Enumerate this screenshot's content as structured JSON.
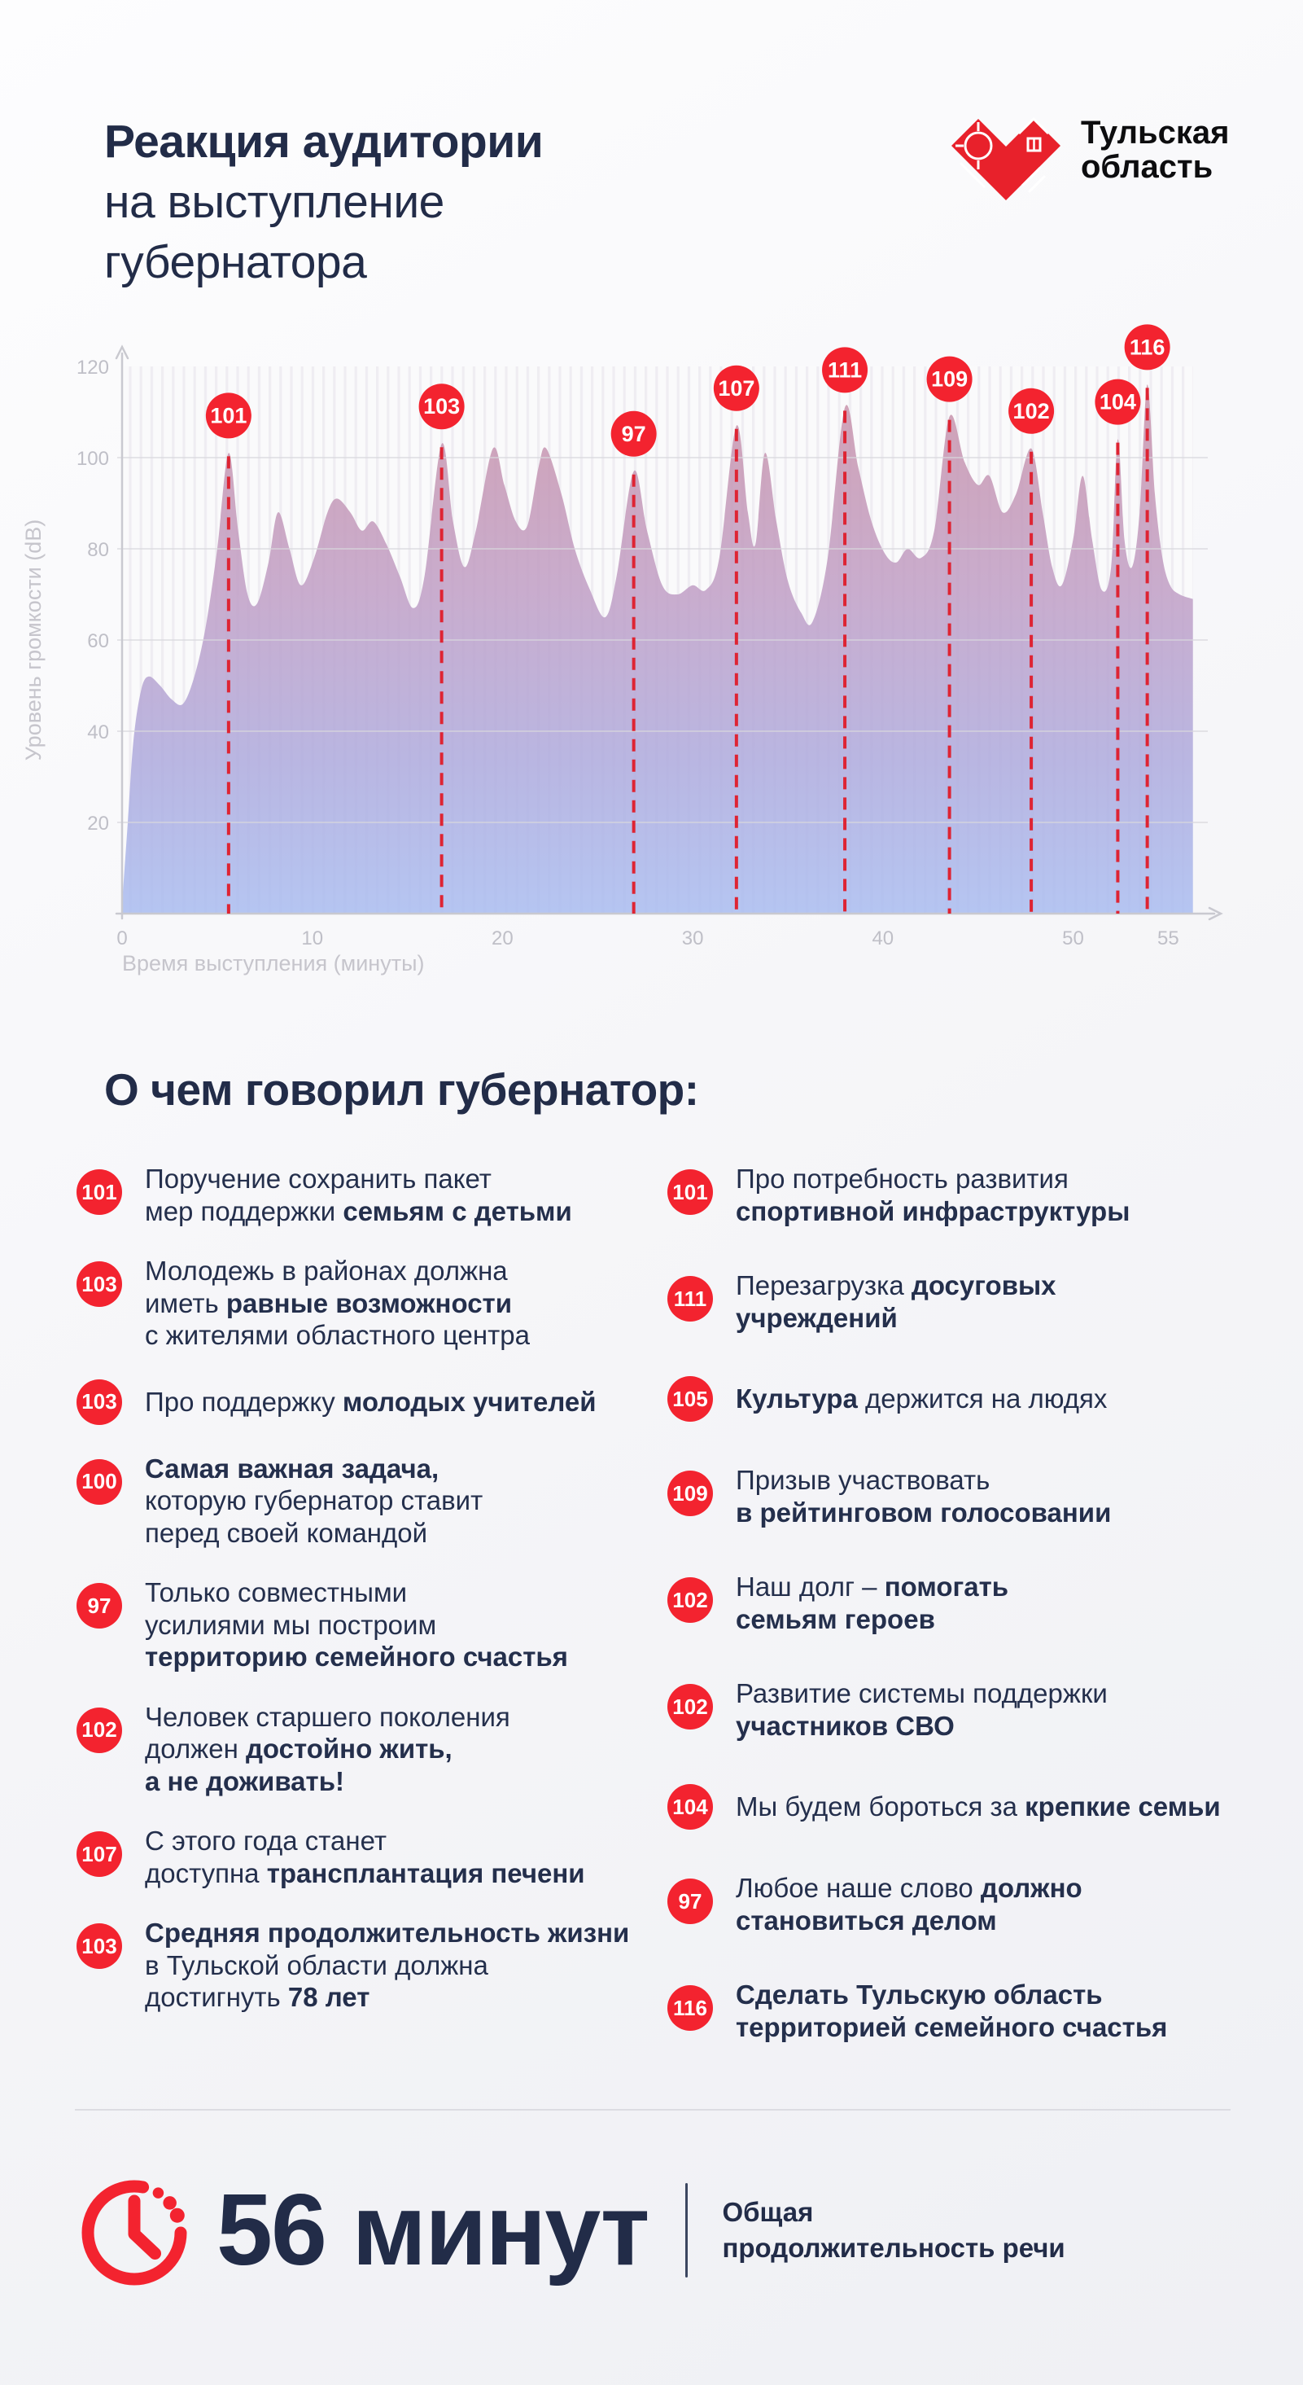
{
  "header": {
    "title_lines": [
      "Реакция аудитории",
      "на выступление",
      "губернатора"
    ],
    "logo": {
      "name_line1": "Тульская",
      "name_line2": "область"
    }
  },
  "chart_data": {
    "type": "area",
    "xlabel": "Время выступления (минуты)",
    "ylabel": "Уровень громкости (dB)",
    "xlim": [
      0,
      56.3
    ],
    "ylim": [
      0,
      120
    ],
    "x_ticks": [
      0,
      10,
      20,
      30,
      40,
      50,
      55
    ],
    "y_tick_labels": [
      20,
      40,
      60,
      80,
      100,
      120
    ],
    "y_gridlines": [
      20,
      40,
      60,
      80,
      100
    ],
    "grid": "horizontal",
    "points": [
      [
        0,
        2
      ],
      [
        0.3,
        20
      ],
      [
        0.6,
        38
      ],
      [
        1.0,
        49
      ],
      [
        1.4,
        52
      ],
      [
        2.0,
        50
      ],
      [
        2.6,
        47
      ],
      [
        3.2,
        46
      ],
      [
        3.8,
        52
      ],
      [
        4.4,
        63
      ],
      [
        5.0,
        80
      ],
      [
        5.6,
        101
      ],
      [
        6.1,
        84
      ],
      [
        6.6,
        70
      ],
      [
        7.1,
        68
      ],
      [
        7.7,
        77
      ],
      [
        8.2,
        88
      ],
      [
        8.8,
        80
      ],
      [
        9.4,
        72
      ],
      [
        10.1,
        78
      ],
      [
        10.8,
        88
      ],
      [
        11.3,
        91
      ],
      [
        12.0,
        88
      ],
      [
        12.6,
        84
      ],
      [
        13.2,
        86
      ],
      [
        13.9,
        81
      ],
      [
        14.6,
        74
      ],
      [
        15.3,
        67
      ],
      [
        15.9,
        74
      ],
      [
        16.8,
        103
      ],
      [
        17.4,
        86
      ],
      [
        18.0,
        76
      ],
      [
        18.6,
        84
      ],
      [
        19.5,
        102
      ],
      [
        20.1,
        94
      ],
      [
        20.7,
        86
      ],
      [
        21.3,
        85
      ],
      [
        21.9,
        98
      ],
      [
        22.3,
        102
      ],
      [
        23.1,
        92
      ],
      [
        23.8,
        80
      ],
      [
        24.6,
        71
      ],
      [
        25.4,
        65
      ],
      [
        26.0,
        74
      ],
      [
        26.9,
        97
      ],
      [
        27.6,
        84
      ],
      [
        28.4,
        72
      ],
      [
        29.2,
        70
      ],
      [
        30.0,
        72
      ],
      [
        30.7,
        71
      ],
      [
        31.4,
        78
      ],
      [
        32.3,
        107
      ],
      [
        32.9,
        88
      ],
      [
        33.3,
        81
      ],
      [
        33.8,
        101
      ],
      [
        34.4,
        86
      ],
      [
        35.0,
        73
      ],
      [
        35.7,
        66
      ],
      [
        36.3,
        64
      ],
      [
        37.1,
        78
      ],
      [
        38.0,
        111
      ],
      [
        38.7,
        98
      ],
      [
        39.4,
        86
      ],
      [
        40.1,
        79
      ],
      [
        40.7,
        77
      ],
      [
        41.3,
        80
      ],
      [
        42.0,
        78
      ],
      [
        42.7,
        84
      ],
      [
        43.5,
        109
      ],
      [
        44.3,
        99
      ],
      [
        45.0,
        94
      ],
      [
        45.6,
        96
      ],
      [
        46.3,
        88
      ],
      [
        47.0,
        92
      ],
      [
        47.8,
        102
      ],
      [
        48.4,
        88
      ],
      [
        48.9,
        76
      ],
      [
        49.4,
        72
      ],
      [
        50.0,
        82
      ],
      [
        50.5,
        96
      ],
      [
        51.0,
        82
      ],
      [
        51.5,
        71
      ],
      [
        52.0,
        76
      ],
      [
        52.35,
        104
      ],
      [
        52.7,
        82
      ],
      [
        53.1,
        76
      ],
      [
        53.5,
        88
      ],
      [
        53.9,
        116
      ],
      [
        54.3,
        92
      ],
      [
        54.7,
        78
      ],
      [
        55.1,
        72
      ],
      [
        55.6,
        70
      ],
      [
        56.3,
        69
      ]
    ],
    "labeled_peaks": [
      {
        "minute": 5.6,
        "value": 101
      },
      {
        "minute": 16.8,
        "value": 103
      },
      {
        "minute": 26.9,
        "value": 97
      },
      {
        "minute": 32.3,
        "value": 107
      },
      {
        "minute": 38.0,
        "value": 111
      },
      {
        "minute": 43.5,
        "value": 109
      },
      {
        "minute": 47.8,
        "value": 102
      },
      {
        "minute": 52.35,
        "value": 104
      },
      {
        "minute": 53.9,
        "value": 116
      }
    ],
    "colors": {
      "badge_red": "#f3232f",
      "dash_red": "#de2433",
      "area_top": "#ca91a6",
      "area_mid": "#c09fc6",
      "area_mid2": "#aeaadd",
      "area_bottom": "#a9bcf0",
      "axis_gray": "#c9c9d0",
      "tick_gray": "#bfbfc7",
      "navy": "#222c48",
      "logo_red": "#e8212b"
    }
  },
  "topics": {
    "heading": "О чем говорил губернатор:",
    "left": [
      {
        "badge": 101,
        "lines": [
          [
            {
              "t": "Поручение сохранить пакет"
            }
          ],
          [
            {
              "t": "мер поддержки "
            },
            {
              "t": "семьям с детьми",
              "b": true
            }
          ]
        ]
      },
      {
        "badge": 103,
        "lines": [
          [
            {
              "t": "Молодежь в районах должна"
            }
          ],
          [
            {
              "t": "иметь "
            },
            {
              "t": "равные возможности",
              "b": true
            }
          ],
          [
            {
              "t": "с жителями областного центра"
            }
          ]
        ]
      },
      {
        "badge": 103,
        "lines": [
          [
            {
              "t": "Про поддержку "
            },
            {
              "t": "молодых учителей",
              "b": true
            }
          ]
        ]
      },
      {
        "badge": 100,
        "lines": [
          [
            {
              "t": "Самая важная задача,",
              "b": true
            }
          ],
          [
            {
              "t": "которую губернатор ставит"
            }
          ],
          [
            {
              "t": "перед своей командой"
            }
          ]
        ]
      },
      {
        "badge": 97,
        "lines": [
          [
            {
              "t": "Только совместными"
            }
          ],
          [
            {
              "t": "усилиями мы построим"
            }
          ],
          [
            {
              "t": "территорию семейного счастья",
              "b": true
            }
          ]
        ]
      },
      {
        "badge": 102,
        "lines": [
          [
            {
              "t": "Человек старшего поколения"
            }
          ],
          [
            {
              "t": "должен "
            },
            {
              "t": "достойно жить,",
              "b": true
            }
          ],
          [
            {
              "t": "а не доживать!",
              "b": true
            }
          ]
        ]
      },
      {
        "badge": 107,
        "lines": [
          [
            {
              "t": "С этого года станет"
            }
          ],
          [
            {
              "t": "доступна "
            },
            {
              "t": "трансплантация печени",
              "b": true
            }
          ]
        ]
      },
      {
        "badge": 103,
        "lines": [
          [
            {
              "t": "Средняя продолжительность жизни",
              "b": true
            }
          ],
          [
            {
              "t": "в Тульской области должна"
            }
          ],
          [
            {
              "t": "достигнуть "
            },
            {
              "t": "78 лет",
              "b": true
            }
          ]
        ]
      }
    ],
    "right": [
      {
        "badge": 101,
        "lines": [
          [
            {
              "t": "Про потребность развития"
            }
          ],
          [
            {
              "t": "спортивной инфраструктуры",
              "b": true
            }
          ]
        ]
      },
      {
        "badge": 111,
        "lines": [
          [
            {
              "t": "Перезагрузка "
            },
            {
              "t": "досуговых",
              "b": true
            }
          ],
          [
            {
              "t": "учреждений",
              "b": true
            }
          ]
        ]
      },
      {
        "badge": 105,
        "lines": [
          [
            {
              "t": "Культура",
              "b": true
            },
            {
              "t": " держится на людях"
            }
          ]
        ]
      },
      {
        "badge": 109,
        "lines": [
          [
            {
              "t": "Призыв участвовать"
            }
          ],
          [
            {
              "t": "в рейтинговом голосовании",
              "b": true
            }
          ]
        ]
      },
      {
        "badge": 102,
        "lines": [
          [
            {
              "t": "Наш долг – "
            },
            {
              "t": "помогать",
              "b": true
            }
          ],
          [
            {
              "t": "семьям героев",
              "b": true
            }
          ]
        ]
      },
      {
        "badge": 102,
        "lines": [
          [
            {
              "t": "Развитие системы поддержки"
            }
          ],
          [
            {
              "t": "участников СВО",
              "b": true
            }
          ]
        ]
      },
      {
        "badge": 104,
        "lines": [
          [
            {
              "t": "Мы будем бороться за "
            },
            {
              "t": "крепкие семьи",
              "b": true
            }
          ]
        ]
      },
      {
        "badge": 97,
        "lines": [
          [
            {
              "t": "Любое наше слово "
            },
            {
              "t": "должно",
              "b": true
            }
          ],
          [
            {
              "t": "становиться делом",
              "b": true
            }
          ]
        ]
      },
      {
        "badge": 116,
        "lines": [
          [
            {
              "t": "Сделать Тульскую область",
              "b": true
            }
          ],
          [
            {
              "t": "территорией семейного счастья",
              "b": true
            }
          ]
        ]
      }
    ]
  },
  "footer": {
    "duration_value": "56 минут",
    "caption_lines": [
      "Общая",
      "продолжительность речи"
    ]
  }
}
